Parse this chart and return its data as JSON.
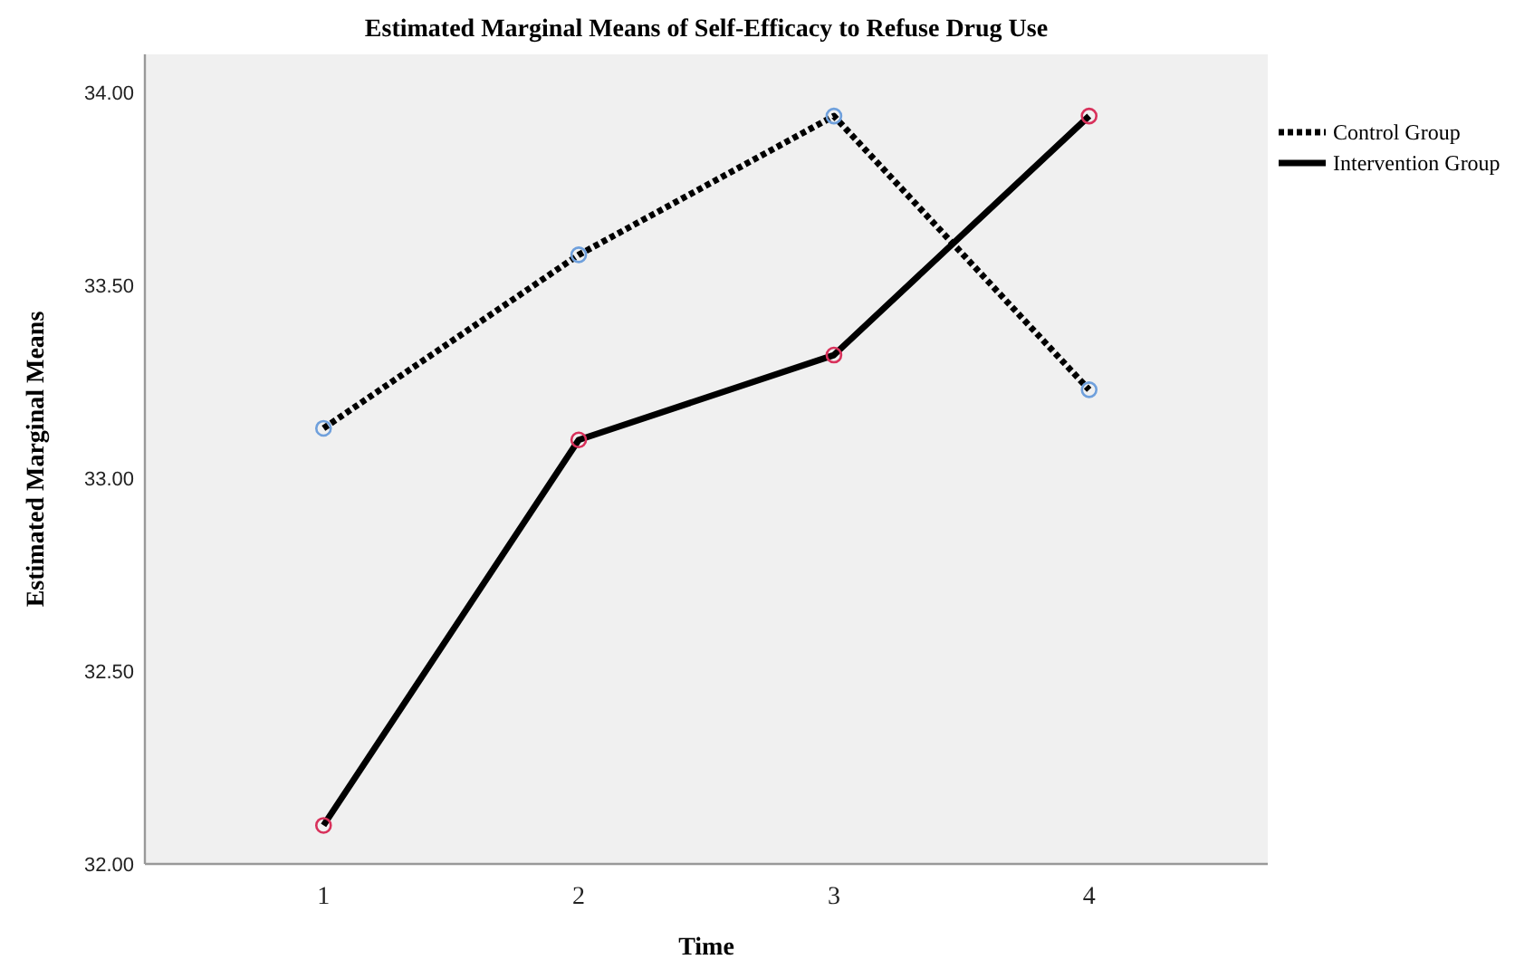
{
  "chart_data": {
    "type": "line",
    "title": "Estimated Marginal Means of Self-Efficacy to Refuse Drug Use",
    "xlabel": "Time",
    "ylabel": "Estimated Marginal Means",
    "categories": [
      "1",
      "2",
      "3",
      "4"
    ],
    "series": [
      {
        "name": "Control Group",
        "color": "#000000",
        "line_style": "dotted",
        "colors": [
          "#6fa0dc",
          "#6fa0dc",
          "#6fa0dc",
          "#6fa0dc"
        ],
        "values": [
          33.13,
          33.58,
          33.94,
          33.23
        ]
      },
      {
        "name": "Intervention Group",
        "color": "#000000",
        "line_style": "solid",
        "colors": [
          "#d8315b",
          "#d8315b",
          "#d8315b",
          "#d8315b"
        ],
        "values": [
          32.1,
          33.1,
          33.32,
          33.94
        ]
      }
    ],
    "ylim": [
      32.0,
      34.1
    ],
    "yticks": [
      {
        "value": 32,
        "label": "32.00"
      },
      {
        "value": 32.5,
        "label": "32.50"
      },
      {
        "value": 33,
        "label": "33.00"
      },
      {
        "value": 33.5,
        "label": "33.50"
      },
      {
        "value": 34,
        "label": "34.00"
      }
    ],
    "marker": "circle",
    "grid": false,
    "legend": "top right"
  }
}
